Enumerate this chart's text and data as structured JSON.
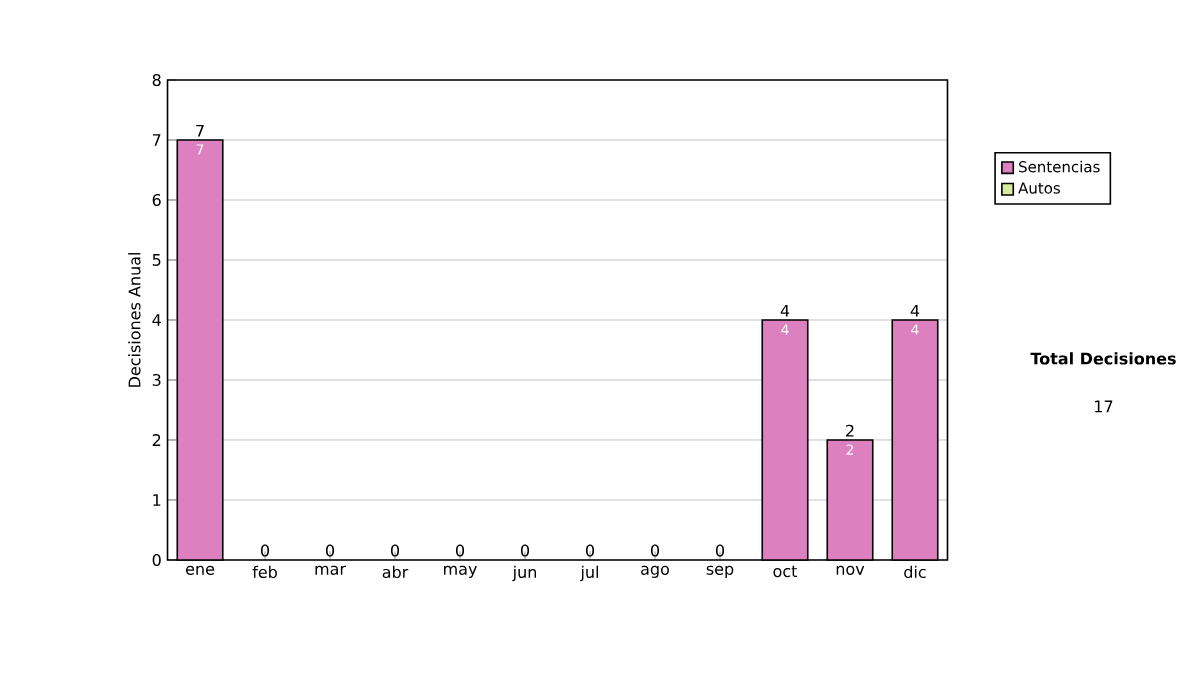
{
  "chart_data": {
    "type": "bar",
    "ylabel": "Decisiones Anual",
    "categories": [
      "ene",
      "feb",
      "mar",
      "abr",
      "may",
      "jun",
      "jul",
      "ago",
      "sep",
      "oct",
      "nov",
      "dic"
    ],
    "series": [
      {
        "name": "Sentencias",
        "color": "#dd80c0",
        "values": [
          7,
          0,
          0,
          0,
          0,
          0,
          0,
          0,
          0,
          4,
          2,
          4
        ],
        "value_labels": [
          "7",
          null,
          null,
          null,
          null,
          null,
          null,
          null,
          null,
          "4",
          "2",
          "4"
        ]
      },
      {
        "name": "Autos",
        "color": "#d8eca0",
        "values": [
          0,
          0,
          0,
          0,
          0,
          0,
          0,
          0,
          0,
          0,
          0,
          0
        ]
      }
    ],
    "stacked": true,
    "totals": [
      "7",
      "0",
      "0",
      "0",
      "0",
      "0",
      "0",
      "0",
      "0",
      "4",
      "2",
      "4"
    ],
    "ylim": [
      0,
      8
    ],
    "yticks": [
      0,
      1,
      2,
      3,
      4,
      5,
      6,
      7,
      8
    ],
    "grid": "y",
    "legend": "right",
    "annotations": [
      "Total Decisiones",
      "17"
    ]
  }
}
